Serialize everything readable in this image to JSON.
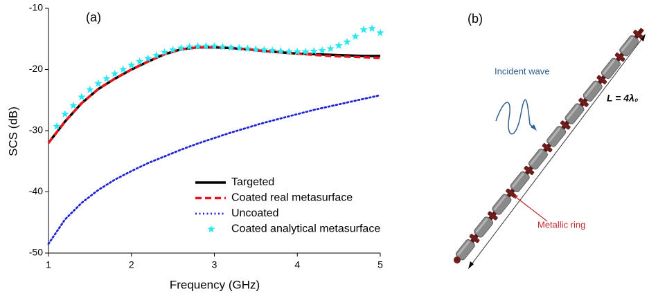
{
  "chart_data": {
    "type": "line",
    "panel_label": "(a)",
    "x_label": "Frequency (GHz)",
    "y_label": "SCS (dB)",
    "xlim": [
      1,
      5
    ],
    "ylim": [
      -50,
      -10
    ],
    "xticks": [
      1,
      2,
      3,
      4,
      5
    ],
    "yticks": [
      -50,
      -40,
      -30,
      -20,
      -10
    ],
    "grid": false,
    "x": [
      1,
      1.2,
      1.4,
      1.6,
      1.8,
      2,
      2.2,
      2.4,
      2.6,
      2.8,
      3,
      3.2,
      3.4,
      3.6,
      3.8,
      4,
      4.2,
      4.4,
      4.6,
      4.8,
      5
    ],
    "series": [
      {
        "name": "Targeted",
        "color": "#000000",
        "style": "solid",
        "values": [
          -32,
          -28.5,
          -25.5,
          -23.2,
          -21.5,
          -20,
          -18.7,
          -17.5,
          -16.7,
          -16.4,
          -16.4,
          -16.5,
          -16.7,
          -17,
          -17.2,
          -17.4,
          -17.5,
          -17.6,
          -17.7,
          -17.8,
          -17.8
        ]
      },
      {
        "name": "Coated real metasurface",
        "color": "#e8141b",
        "style": "dashed",
        "values": [
          -32,
          -28.5,
          -25.5,
          -23.2,
          -21.5,
          -20,
          -18.7,
          -17.5,
          -16.7,
          -16.4,
          -16.4,
          -16.5,
          -16.7,
          -17,
          -17.2,
          -17.4,
          -17.6,
          -17.8,
          -17.9,
          -18,
          -18.1
        ]
      },
      {
        "name": "Uncoated",
        "color": "#1f22d6",
        "style": "dotted",
        "values": [
          -48.5,
          -44.5,
          -41.8,
          -39.7,
          -38,
          -36.6,
          -35.3,
          -34.2,
          -33.1,
          -32.1,
          -31.2,
          -30.3,
          -29.5,
          -28.7,
          -28,
          -27.3,
          -26.6,
          -26,
          -25.4,
          -24.8,
          -24.2
        ]
      },
      {
        "name": "Coated analytical metasurface",
        "color": "#2ee6f0",
        "style": "markers",
        "x": [
          1.1,
          1.2,
          1.3,
          1.4,
          1.5,
          1.6,
          1.7,
          1.8,
          1.9,
          2,
          2.1,
          2.2,
          2.3,
          2.4,
          2.5,
          2.6,
          2.7,
          2.8,
          2.9,
          3,
          3.1,
          3.2,
          3.3,
          3.4,
          3.5,
          3.6,
          3.7,
          3.8,
          3.9,
          4,
          4.1,
          4.2,
          4.3,
          4.4,
          4.5,
          4.6,
          4.7,
          4.8,
          4.9,
          5
        ],
        "values": [
          -29.3,
          -27.3,
          -25.9,
          -24.5,
          -23.3,
          -22.3,
          -21.5,
          -20.7,
          -20,
          -19.3,
          -18.7,
          -18.2,
          -17.7,
          -17.2,
          -16.8,
          -16.5,
          -16.3,
          -16.2,
          -16.2,
          -16.2,
          -16.3,
          -16.4,
          -16.5,
          -16.6,
          -16.7,
          -16.8,
          -16.9,
          -17,
          -17.1,
          -17.1,
          -17.1,
          -17,
          -16.9,
          -16.6,
          -16.1,
          -15.5,
          -14.6,
          -13.5,
          -13.3,
          -14
        ]
      }
    ]
  },
  "diagram": {
    "panel_label": "(b)",
    "incident_label": "Incident wave",
    "length_label": "L = 4λ₀",
    "ring_label": "Metallic ring"
  }
}
